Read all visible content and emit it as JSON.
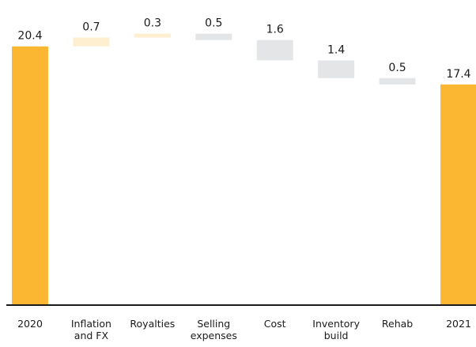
{
  "chart_data": {
    "type": "bar",
    "subtype": "waterfall",
    "title": "",
    "xlabel": "",
    "ylabel": "",
    "ylim": [
      0,
      23
    ],
    "grid": false,
    "legend": "none",
    "colors": {
      "total": "#FBB731",
      "increase": "#FDEFCF",
      "decrease": "#E4E5E7",
      "axis": "#1a1a1a"
    },
    "bars": [
      {
        "category": [
          "2020"
        ],
        "kind": "total",
        "value": 20.4,
        "label": "20.4"
      },
      {
        "category": [
          "Inflation",
          "and FX"
        ],
        "kind": "increase",
        "value": 0.7,
        "label": "0.7"
      },
      {
        "category": [
          "Royalties"
        ],
        "kind": "increase",
        "value": 0.3,
        "label": "0.3"
      },
      {
        "category": [
          "Selling",
          "expenses"
        ],
        "kind": "decrease",
        "value": 0.5,
        "label": "0.5"
      },
      {
        "category": [
          "Cost"
        ],
        "kind": "decrease",
        "value": 1.6,
        "label": "1.6"
      },
      {
        "category": [
          "Inventory",
          "build"
        ],
        "kind": "decrease",
        "value": 1.4,
        "label": "1.4"
      },
      {
        "category": [
          "Rehab"
        ],
        "kind": "decrease",
        "value": 0.5,
        "label": "0.5"
      },
      {
        "category": [
          "2021"
        ],
        "kind": "total",
        "value": 17.4,
        "label": "17.4"
      }
    ]
  }
}
